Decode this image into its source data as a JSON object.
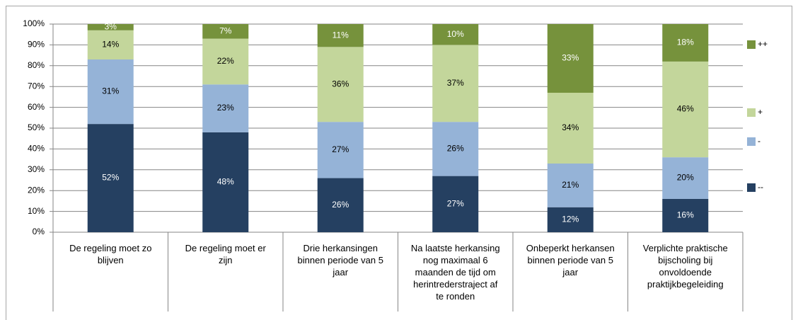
{
  "chart_data": {
    "type": "stacked_bar",
    "categories": [
      "De regeling moet zo\nblijven",
      "De regeling moet er\nzijn",
      "Drie herkansingen\nbinnen periode van 5\njaar",
      "Na laatste  herkansing\nnog maximaal  6\nmaanden de tijd om\nherintrederstraject af\nte ronden",
      "Onbeperkt herkansen\nbinnen periode van 5\njaar",
      "Verplichte praktische\nbijscholing bij\nonvoldoende\npraktijkbegeleiding"
    ],
    "series": [
      {
        "name": "--",
        "color": "#254061",
        "values": [
          52,
          48,
          26,
          27,
          12,
          16
        ],
        "value_labels": [
          "52%",
          "48%",
          "26%",
          "27%",
          "12%",
          "16%"
        ]
      },
      {
        "name": "-",
        "color": "#95b3d7",
        "values": [
          31,
          23,
          27,
          26,
          21,
          20
        ],
        "value_labels": [
          "31%",
          "23%",
          "27%",
          "26%",
          "21%",
          "20%"
        ]
      },
      {
        "name": "+",
        "color": "#c3d69b",
        "values": [
          14,
          22,
          36,
          37,
          34,
          46
        ],
        "value_labels": [
          "14%",
          "22%",
          "36%",
          "37%",
          "34%",
          "46%"
        ]
      },
      {
        "name": "++",
        "color": "#76923c",
        "values": [
          3,
          7,
          11,
          10,
          33,
          18
        ],
        "value_labels": [
          "3%",
          "7%",
          "11%",
          "10%",
          "33%",
          "18%"
        ]
      }
    ],
    "ylim": [
      0,
      100
    ],
    "yticks": [
      {
        "value": 0,
        "label": "0%"
      },
      {
        "value": 10,
        "label": "10%"
      },
      {
        "value": 20,
        "label": "20%"
      },
      {
        "value": 30,
        "label": "30%"
      },
      {
        "value": 40,
        "label": "40%"
      },
      {
        "value": 50,
        "label": "50%"
      },
      {
        "value": 60,
        "label": "60%"
      },
      {
        "value": 70,
        "label": "70%"
      },
      {
        "value": 80,
        "label": "80%"
      },
      {
        "value": 90,
        "label": "90%"
      },
      {
        "value": 100,
        "label": "100%"
      }
    ],
    "grid": true,
    "legend": "right"
  }
}
